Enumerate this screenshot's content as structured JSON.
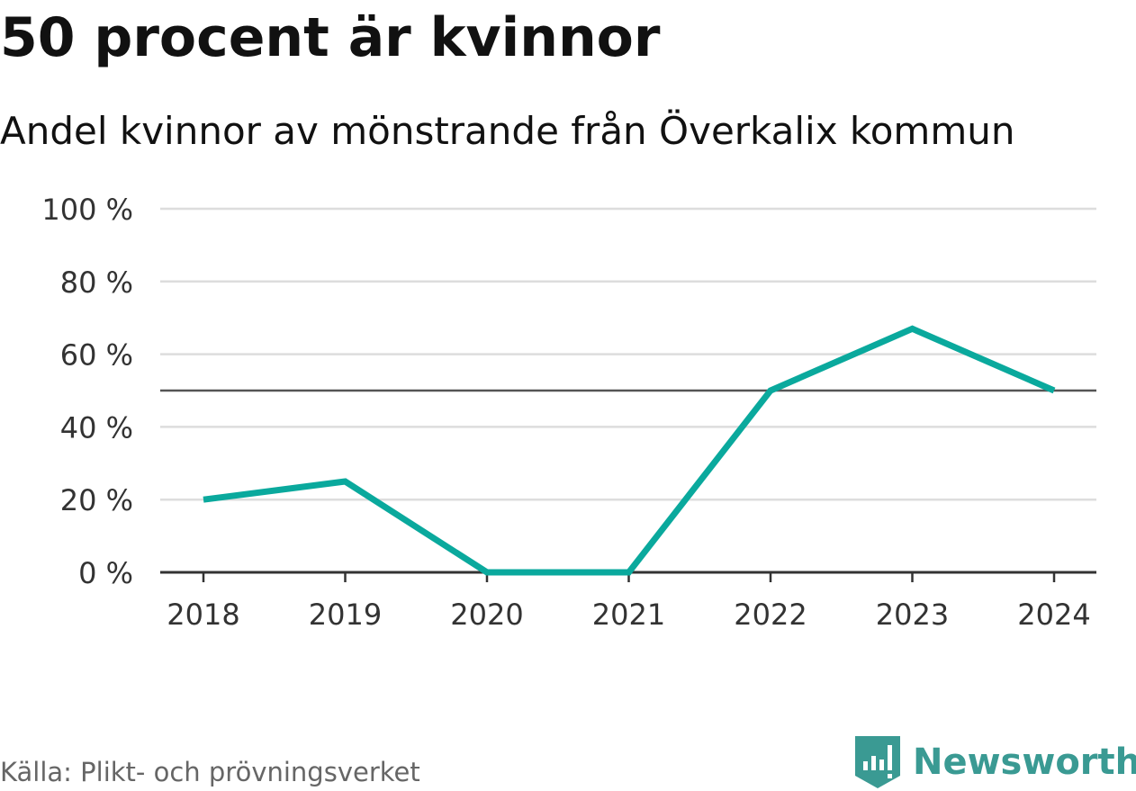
{
  "title": "50 procent är kvinnor",
  "subtitle": "Andel kvinnor av mönstrande från Överkalix kommun",
  "source": "Källa: Plikt- och prövningsverket",
  "brand": {
    "name": "Newsworthy",
    "icon": "newsworthy-logo-icon"
  },
  "colors": {
    "series": "#0aa99d",
    "grid": "#dddddd",
    "reference": "#555555",
    "axis": "#333333",
    "brand": "#3a9a93"
  },
  "chart_data": {
    "type": "line",
    "title": "50 procent är kvinnor",
    "subtitle": "Andel kvinnor av mönstrande från Överkalix kommun",
    "xlabel": "",
    "ylabel": "",
    "categories": [
      "2018",
      "2019",
      "2020",
      "2021",
      "2022",
      "2023",
      "2024"
    ],
    "series": [
      {
        "values": [
          20,
          25,
          0,
          0,
          50,
          67,
          50
        ]
      }
    ],
    "ylim": [
      0,
      100
    ],
    "yticks": [
      0,
      20,
      40,
      60,
      80,
      100
    ],
    "ytick_labels": [
      "0 %",
      "20 %",
      "40 %",
      "60 %",
      "80 %",
      "100 %"
    ],
    "reference_line": 50,
    "grid": true,
    "legend": "none"
  }
}
